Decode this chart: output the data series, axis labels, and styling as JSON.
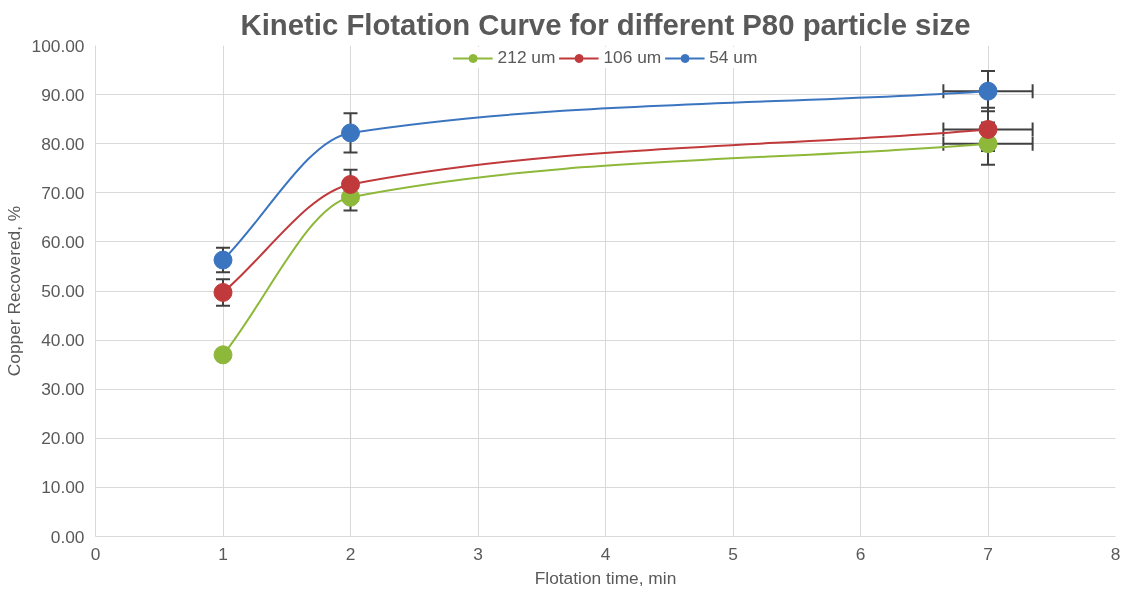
{
  "chart_data": {
    "type": "line",
    "title": "Kinetic Flotation Curve for different P80 particle size",
    "xlabel": "Flotation time, min",
    "ylabel": "Copper Recovered, %",
    "x": [
      1,
      2,
      7
    ],
    "series": [
      {
        "name": "212 um",
        "color": "#8db83a",
        "values": [
          37.0,
          69.1,
          80.0
        ],
        "errors": [
          null,
          2.7,
          4.3
        ],
        "xerrors": [
          null,
          null,
          0.35
        ]
      },
      {
        "name": "106 um",
        "color": "#c0393b",
        "values": [
          49.7,
          71.7,
          82.9
        ],
        "errors": [
          2.7,
          3.0,
          4.4
        ],
        "xerrors": [
          null,
          null,
          0.35
        ]
      },
      {
        "name": "54 um",
        "color": "#3b75c0",
        "values": [
          56.3,
          82.2,
          90.7
        ],
        "errors": [
          2.5,
          4.0,
          4.1
        ],
        "xerrors": [
          null,
          null,
          0.35
        ]
      }
    ],
    "xlim": [
      0,
      8
    ],
    "xticks": [
      0,
      1,
      2,
      3,
      4,
      5,
      6,
      7,
      8
    ],
    "ylim": [
      0,
      100
    ],
    "yticks": [
      {
        "value": 0,
        "label": "0.00"
      },
      {
        "value": 10,
        "label": "10.00"
      },
      {
        "value": 20,
        "label": "20.00"
      },
      {
        "value": 30,
        "label": "30.00"
      },
      {
        "value": 40,
        "label": "40.00"
      },
      {
        "value": 50,
        "label": "50.00"
      },
      {
        "value": 60,
        "label": "60.00"
      },
      {
        "value": 70,
        "label": "70.00"
      },
      {
        "value": 80,
        "label": "80.00"
      },
      {
        "value": 90,
        "label": "90.00"
      },
      {
        "value": 100,
        "label": "100.00"
      }
    ],
    "grid": true,
    "legend": "top",
    "marker": "circle",
    "line_style": "solid"
  }
}
